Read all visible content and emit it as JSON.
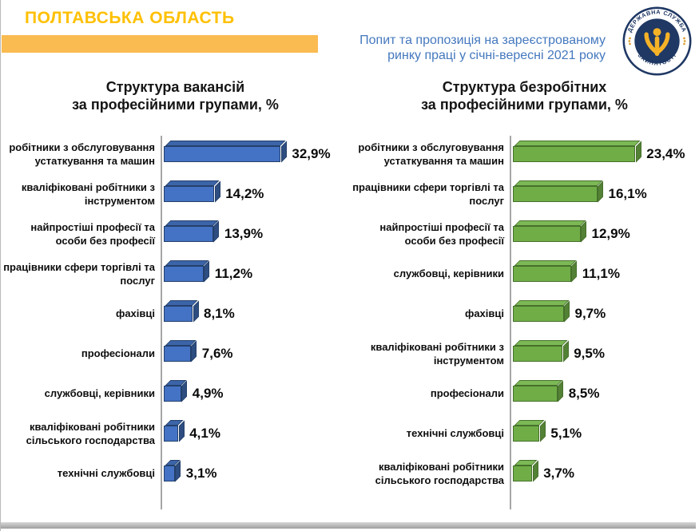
{
  "page": {
    "region_title": "ПОЛТАВСЬКА ОБЛАСТЬ",
    "subtitle_line1": "Попит та пропозиція на зареєстрованому",
    "subtitle_line2": "ринку праці у січні-вересні 2021 року"
  },
  "logo": {
    "top_text": "ДЕРЖАВНА СЛУЖБА",
    "bottom_text": "ЗАЙНЯТОСТІ"
  },
  "colors": {
    "accent_gold": "#FFC000",
    "band_amber": "#FABB51",
    "subtitle_blue": "#4478BE",
    "axis_grey": "#A6A6A6",
    "logo_navy": "#1F3864",
    "logo_gold": "#F5B227"
  },
  "chart_data": [
    {
      "type": "bar",
      "orientation": "horizontal",
      "title_line1": "Структура вакансій",
      "title_line2": "за професійними групами, %",
      "legend": "none",
      "grid": false,
      "axis_max": 36,
      "categories": [
        "робітники з обслуговування устаткування та машин",
        "кваліфіковані робітники з інструментом",
        "найпростіші професії та особи без професії",
        "працівники сфери торгівлі та послуг",
        "фахівці",
        "професіонали",
        "службовці, керівники",
        "кваліфіковані робітники сільського господарства",
        "технічні службовці"
      ],
      "values": [
        32.9,
        14.2,
        13.9,
        11.2,
        8.1,
        7.6,
        4.9,
        4.1,
        3.1
      ],
      "value_labels": [
        "32,9%",
        "14,2%",
        "13,9%",
        "11,2%",
        "8,1%",
        "7,6%",
        "4,9%",
        "4,1%",
        "3,1%"
      ],
      "bar_colors": {
        "face": "#4472C4",
        "top": "#3C64A8",
        "side": "#2E4D80",
        "outline": "#24406B"
      }
    },
    {
      "type": "bar",
      "orientation": "horizontal",
      "title_line1": "Структура безробітних",
      "title_line2": "за професійними групами, %",
      "legend": "none",
      "grid": false,
      "axis_max": 26,
      "categories": [
        "робітники з обслуговування устаткування та машин",
        "працівники сфери торгівлі та послуг",
        "найпростіші професії та особи без професії",
        "службовці, керівники",
        "фахівці",
        "кваліфіковані робітники з інструментом",
        "професіонали",
        "технічні службовці",
        "кваліфіковані робітники сільського господарства"
      ],
      "values": [
        23.4,
        16.1,
        12.9,
        11.1,
        9.7,
        9.5,
        8.5,
        5.1,
        3.7
      ],
      "value_labels": [
        "23,4%",
        "16,1%",
        "12,9%",
        "11,1%",
        "9,7%",
        "9,5%",
        "8,5%",
        "5,1%",
        "3,7%"
      ],
      "bar_colors": {
        "face": "#70AD47",
        "top": "#7CB956",
        "side": "#538135",
        "outline": "#46702B"
      }
    }
  ]
}
